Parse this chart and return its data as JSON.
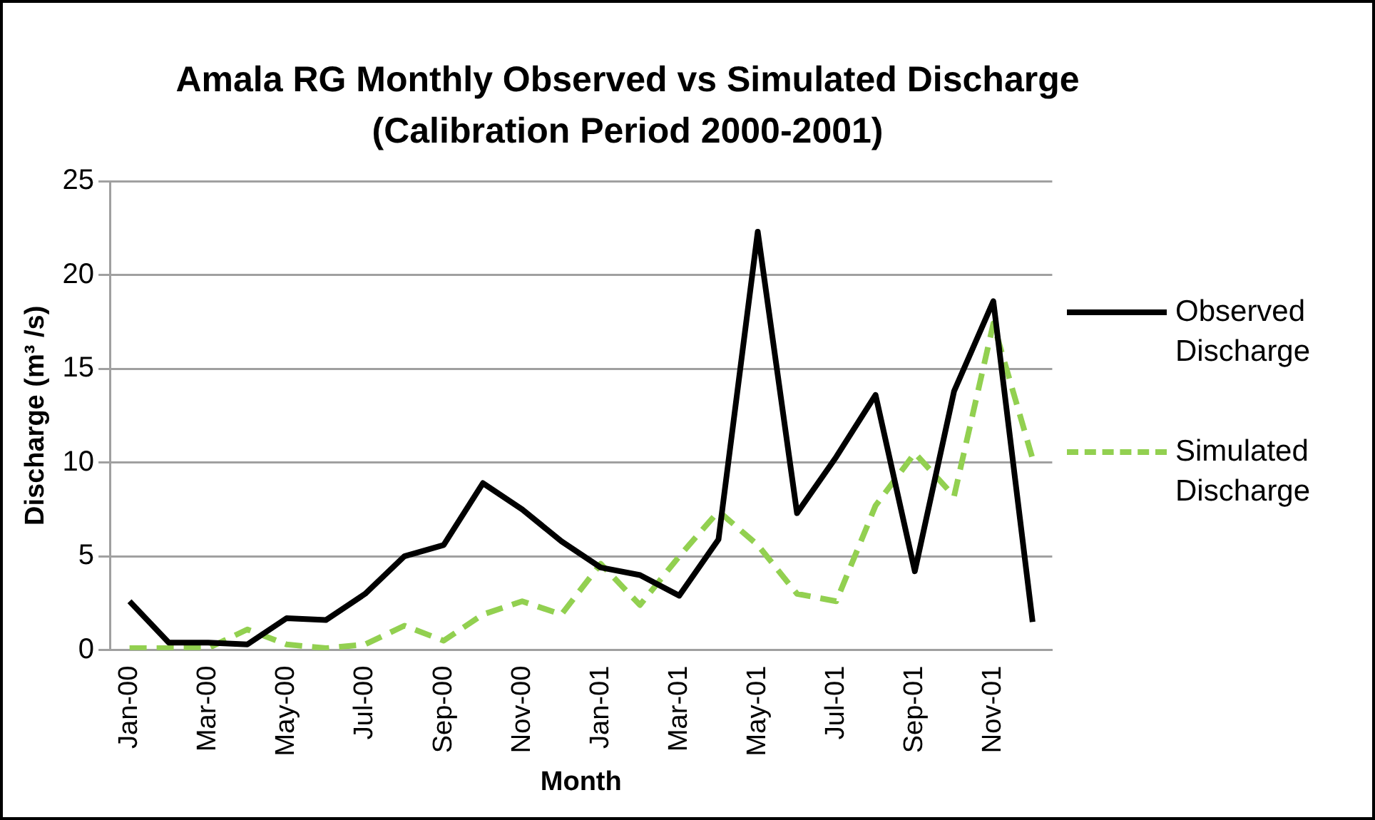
{
  "chart_data": {
    "type": "line",
    "title": "Amala RG Monthly Observed vs Simulated Discharge (Calibration Period 2000-2001)",
    "xlabel": "Month",
    "ylabel": "Discharge (m³ /s)",
    "categories": [
      "Jan-00",
      null,
      "Mar-00",
      null,
      "May-00",
      null,
      "Jul-00",
      null,
      "Sep-00",
      null,
      "Nov-00",
      null,
      "Jan-01",
      null,
      "Mar-01",
      null,
      "May-01",
      null,
      "Jul-01",
      null,
      "Sep-01",
      null,
      "Nov-01",
      null
    ],
    "series": [
      {
        "name": "Observed Discharge",
        "color": "#000000",
        "line_style": "solid",
        "values": [
          2.6,
          0.4,
          0.4,
          0.3,
          1.7,
          1.6,
          3.0,
          5.0,
          5.6,
          8.9,
          7.5,
          5.8,
          4.4,
          4.0,
          2.9,
          5.9,
          22.3,
          7.3,
          10.3,
          13.6,
          4.2,
          13.8,
          18.6,
          1.5
        ]
      },
      {
        "name": "Simulated Discharge",
        "color": "#92d050",
        "line_style": "dashed",
        "values": [
          0.1,
          0.1,
          0.1,
          1.1,
          0.3,
          0.1,
          0.3,
          1.3,
          0.5,
          1.9,
          2.6,
          1.9,
          4.6,
          2.4,
          5.0,
          7.4,
          5.6,
          3.0,
          2.6,
          7.7,
          10.5,
          8.2,
          17.4,
          10.2
        ]
      }
    ],
    "ylim": [
      0,
      25
    ],
    "yticks": [
      0,
      5,
      10,
      15,
      20,
      25
    ],
    "grid": "y",
    "legend": "right",
    "marker": "none"
  }
}
